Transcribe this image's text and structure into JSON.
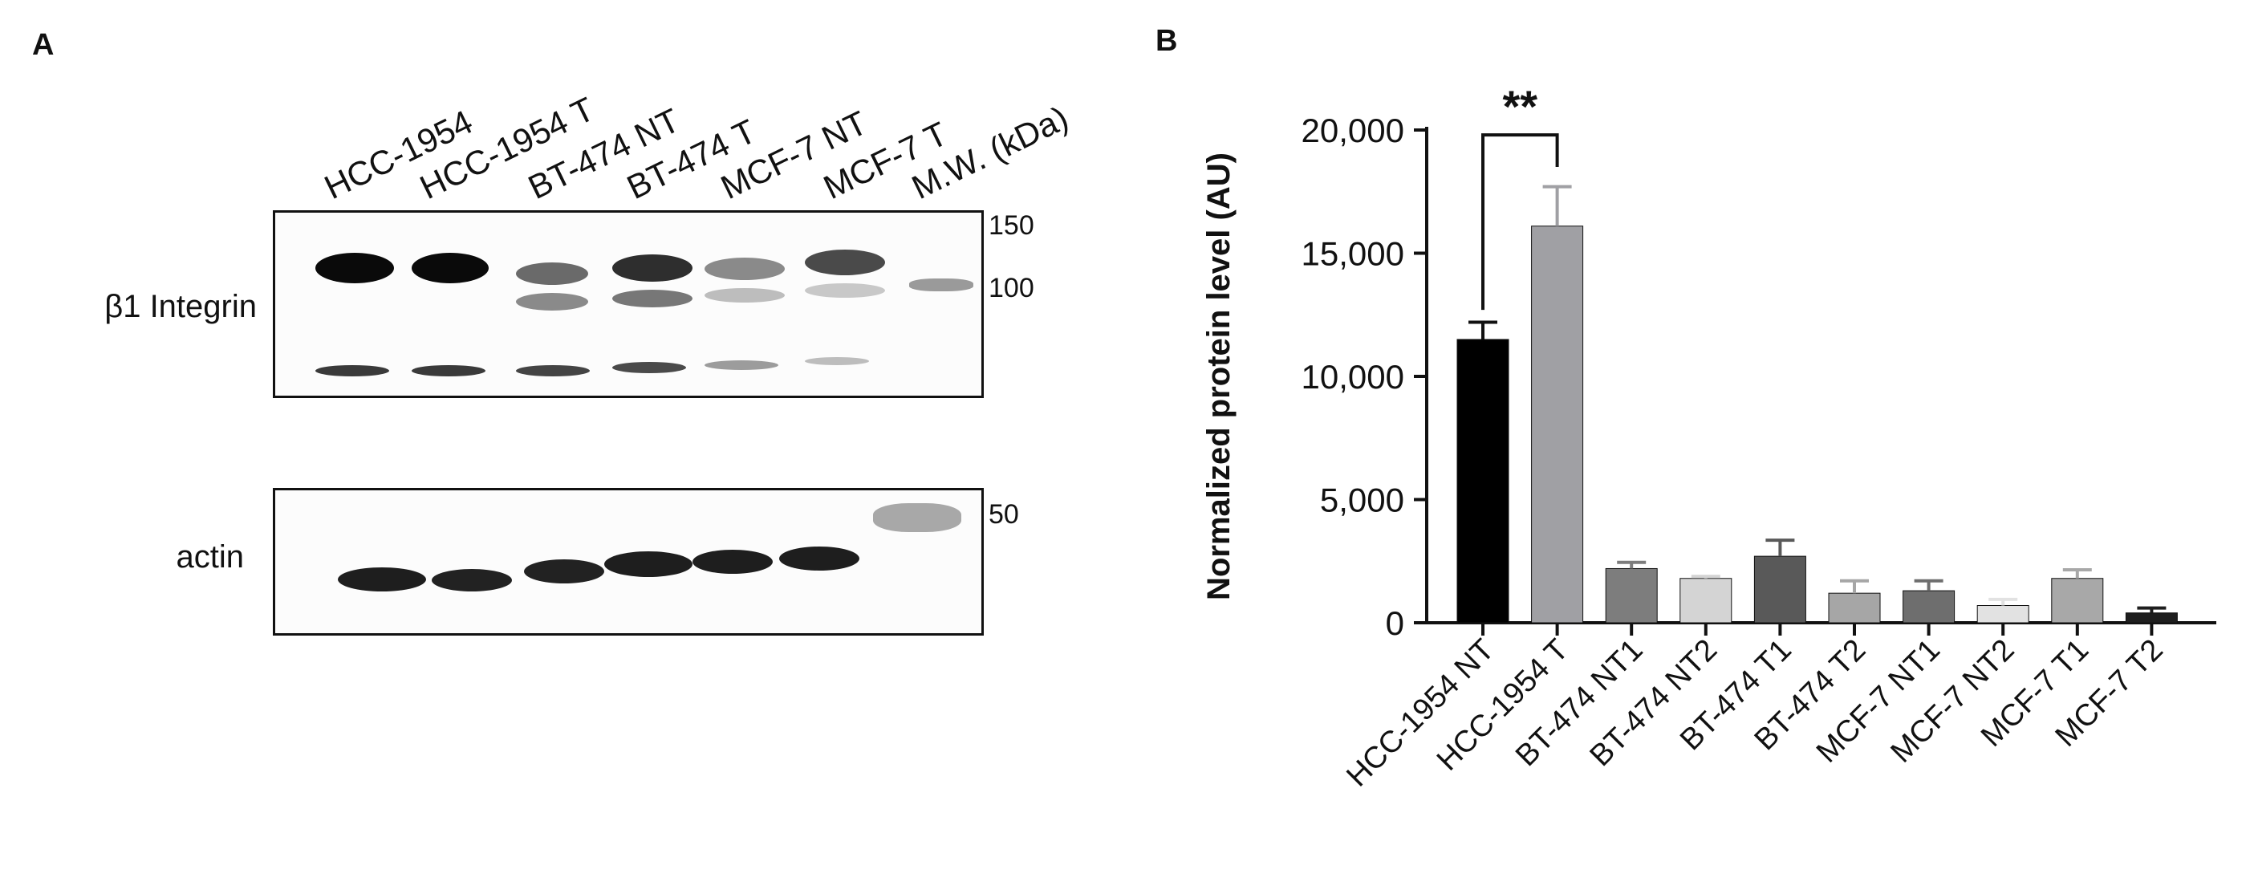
{
  "panel_a": {
    "letter": "A",
    "lane_labels": [
      "HCC-1954",
      "HCC-1954 T",
      "BT-474 NT",
      "BT-474 T",
      "MCF-7 NT",
      "MCF-7 T",
      "M.W. (kDa)"
    ],
    "integrin_label": "β1 Integrin",
    "actin_label": "actin",
    "mw_markers": {
      "m150": "150",
      "m100": "100",
      "m50": "50"
    }
  },
  "panel_b": {
    "letter": "B"
  },
  "chart_data": {
    "type": "bar",
    "categories": [
      "HCC-1954 NT",
      "HCC-1954 T",
      "BT-474 NT1",
      "BT-474 NT2",
      "BT-474 T1",
      "BT-474 T2",
      "MCF-7 NT1",
      "MCF-7 NT2",
      "MCF-7 T1",
      "MCF-7 T2"
    ],
    "values": [
      11500,
      16100,
      2200,
      1800,
      2700,
      1200,
      1300,
      700,
      1800,
      400
    ],
    "errors": [
      700,
      1600,
      250,
      80,
      650,
      500,
      400,
      250,
      350,
      200
    ],
    "colors": [
      "#000000",
      "#a0a0a4",
      "#7d7d7d",
      "#d4d4d4",
      "#595959",
      "#a6a6a6",
      "#6e6e6e",
      "#e2e2e2",
      "#a8a8a8",
      "#1e1e1e"
    ],
    "ylabel": "Normalized protein level (AU)",
    "xlabel": "",
    "ylim": [
      0,
      20000
    ],
    "ytick_values": [
      0,
      5000,
      10000,
      15000,
      20000
    ],
    "ytick_labels": [
      "0",
      "5,000",
      "10,000",
      "15,000",
      "20,000"
    ],
    "significance": {
      "label": "**",
      "from_index": 0,
      "to_index": 1
    }
  }
}
